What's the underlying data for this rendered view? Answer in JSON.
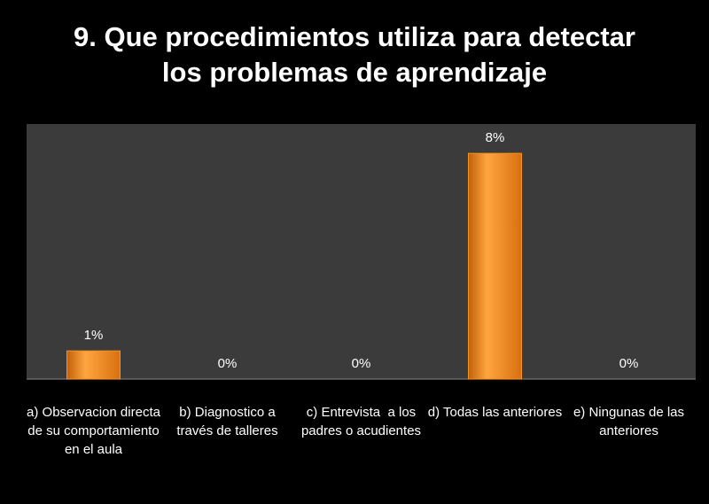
{
  "chart_data": {
    "type": "bar",
    "title": "9. Que procedimientos utiliza para detectar los problemas de aprendizaje",
    "categories": [
      "a) Observacion directa  de su comportamiento en el aula",
      "b) Diagnostico a través de talleres",
      "c) Entrevista  a los padres o acudientes",
      "d) Todas las anteriores",
      "e) Ningunas de las anteriores"
    ],
    "values": [
      1,
      0,
      0,
      8,
      0
    ],
    "value_labels": [
      "1%",
      "0%",
      "0%",
      "8%",
      "0%"
    ],
    "color": "#f7931e"
  }
}
